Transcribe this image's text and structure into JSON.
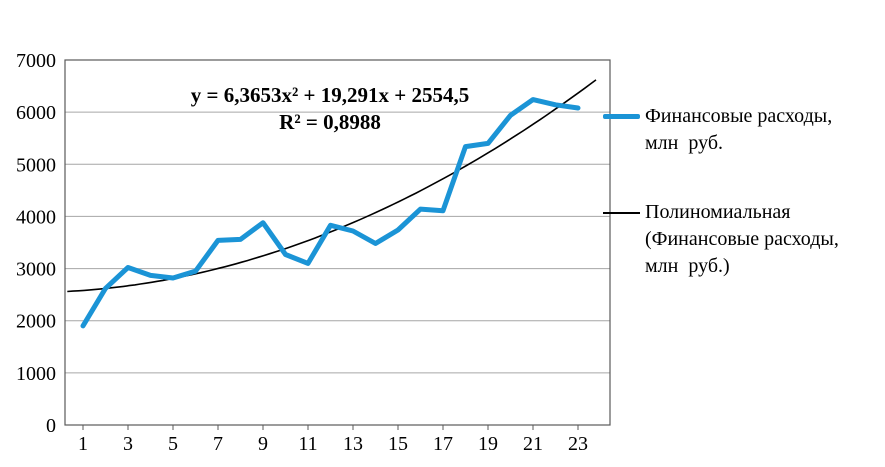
{
  "chart_data": {
    "type": "line",
    "title": "",
    "xlabel": "",
    "ylabel": "",
    "x": [
      1,
      2,
      3,
      4,
      5,
      6,
      7,
      8,
      9,
      10,
      11,
      12,
      13,
      14,
      15,
      16,
      17,
      18,
      19,
      20,
      21,
      22,
      23
    ],
    "xticks": [
      1,
      3,
      5,
      7,
      9,
      11,
      13,
      15,
      17,
      19,
      21,
      23
    ],
    "ylim": [
      0,
      7000
    ],
    "ytick_step": 1000,
    "grid": true,
    "legend_position": "right",
    "series": [
      {
        "name": "Финансовые расходы, млн руб.",
        "type": "line",
        "color": "#1B94D6",
        "values": [
          1900,
          2620,
          3020,
          2870,
          2820,
          2950,
          3540,
          3560,
          3880,
          3270,
          3100,
          3830,
          3720,
          3480,
          3740,
          4140,
          4110,
          5340,
          5400,
          5940,
          6240,
          6140,
          6080
        ]
      }
    ],
    "trendline": {
      "name": "Полиномиальная (Финансовые расходы, млн руб.)",
      "type": "polynomial",
      "degree": 2,
      "coeffs": {
        "a": 6.3653,
        "b": 19.291,
        "c": 2554.5
      },
      "color": "#000000",
      "x_start": 0.3,
      "x_end": 23.8
    },
    "annotation": {
      "line1": "y = 6,3653x² + 19,291x + 2554,5",
      "line2": "R² = 0,8988"
    },
    "colors": {
      "grid": "#A6A6A6",
      "axis": "#595959",
      "text": "#000000"
    }
  },
  "legend": {
    "item1": {
      "line1": "Финансовые расходы,",
      "line2": "млн  руб."
    },
    "item2": {
      "line1": "Полиномиальная",
      "line2": "(Финансовые расходы,",
      "line3": "млн  руб.)"
    }
  }
}
